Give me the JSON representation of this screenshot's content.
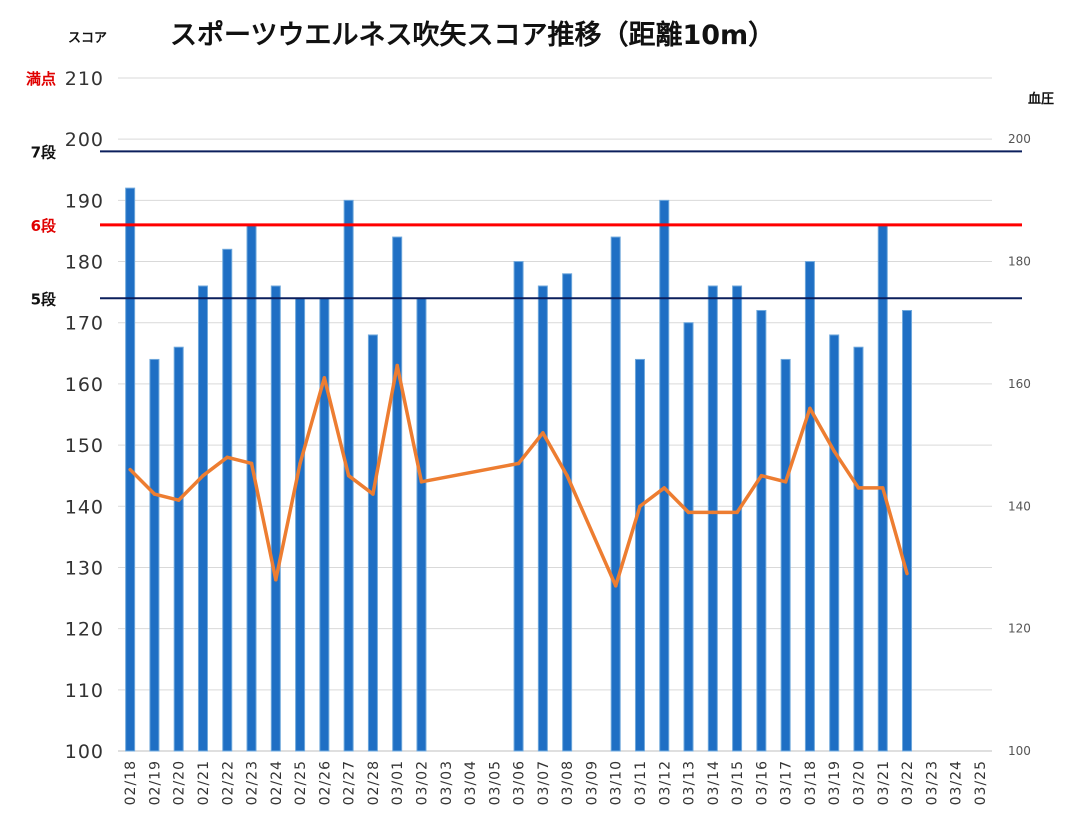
{
  "chart_data": {
    "type": "bar",
    "title": "スポーツウエルネス吹矢スコア推移（距離10m）",
    "ylabel_left": "スコア",
    "ylabel_right": "血圧",
    "ylim_left": [
      100,
      210
    ],
    "ylim_right": [
      100,
      210
    ],
    "yticks_left": [
      100,
      110,
      120,
      130,
      140,
      150,
      160,
      170,
      180,
      190,
      200,
      210
    ],
    "yticks_right": [
      100,
      120,
      140,
      160,
      180,
      200
    ],
    "grid": true,
    "categories": [
      "02/18",
      "02/19",
      "02/20",
      "02/21",
      "02/22",
      "02/23",
      "02/24",
      "02/25",
      "02/26",
      "02/27",
      "02/28",
      "03/01",
      "03/02",
      "03/03",
      "03/04",
      "03/05",
      "03/06",
      "03/07",
      "03/08",
      "03/09",
      "03/10",
      "03/11",
      "03/12",
      "03/13",
      "03/14",
      "03/15",
      "03/16",
      "03/17",
      "03/18",
      "03/19",
      "03/20",
      "03/21",
      "03/22",
      "03/23",
      "03/24",
      "03/25"
    ],
    "series": [
      {
        "type": "bar",
        "axis": "left",
        "color": "#1f6fc4",
        "values": [
          192,
          164,
          166,
          176,
          182,
          186,
          176,
          174,
          174,
          190,
          168,
          184,
          174,
          null,
          null,
          null,
          180,
          176,
          178,
          null,
          184,
          164,
          190,
          170,
          176,
          176,
          172,
          164,
          180,
          168,
          166,
          186,
          172,
          null,
          null,
          null
        ]
      },
      {
        "type": "line",
        "axis": "right",
        "color": "#ed7d31",
        "values": [
          146,
          142,
          141,
          145,
          148,
          147,
          128,
          147,
          161,
          145,
          142,
          163,
          144,
          null,
          null,
          null,
          147,
          152,
          145,
          null,
          127,
          140,
          143,
          139,
          139,
          139,
          145,
          144,
          156,
          149,
          143,
          143,
          129,
          null,
          null,
          null
        ]
      }
    ],
    "reference_lines": [
      {
        "label": "満点",
        "value": 210,
        "color": "#e00000",
        "line": false
      },
      {
        "label": "7段",
        "value": 198,
        "color": "#111111",
        "line_color": "#0b1f5c",
        "line": true
      },
      {
        "label": "6段",
        "value": 186,
        "color": "#e00000",
        "line_color": "#ff0000",
        "line": true
      },
      {
        "label": "5段",
        "value": 174,
        "color": "#111111",
        "line_color": "#0b1f5c",
        "line": true
      }
    ]
  }
}
